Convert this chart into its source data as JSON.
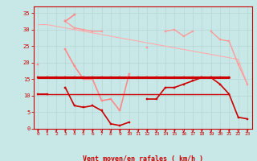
{
  "x": [
    0,
    1,
    2,
    3,
    4,
    5,
    6,
    7,
    8,
    9,
    10,
    11,
    12,
    13,
    14,
    15,
    16,
    17,
    18,
    19,
    20,
    21,
    22,
    23
  ],
  "series": [
    {
      "color": "#cc0000",
      "lw": 2.2,
      "marker": "s",
      "ms": 2.0,
      "zorder": 6,
      "y": [
        15.5,
        15.5,
        15.5,
        15.5,
        15.5,
        15.5,
        15.5,
        15.5,
        15.5,
        15.5,
        15.5,
        15.5,
        15.5,
        15.5,
        15.5,
        15.5,
        15.5,
        15.5,
        15.5,
        15.5,
        15.5,
        15.5,
        null,
        null
      ]
    },
    {
      "color": "#cc0000",
      "lw": 1.2,
      "marker": "s",
      "ms": 2.0,
      "zorder": 5,
      "y": [
        10.5,
        10.5,
        null,
        12.5,
        7.0,
        6.5,
        7.0,
        5.5,
        1.5,
        1.0,
        2.0,
        null,
        9.0,
        9.0,
        12.5,
        12.5,
        13.5,
        14.5,
        15.5,
        15.5,
        13.5,
        10.5,
        3.5,
        3.0
      ]
    },
    {
      "color": "#ff8888",
      "lw": 1.2,
      "marker": "s",
      "ms": 2.0,
      "zorder": 4,
      "y": [
        19.5,
        null,
        null,
        24.0,
        19.0,
        15.0,
        15.0,
        8.5,
        9.0,
        5.5,
        16.5,
        null,
        null,
        null,
        null,
        null,
        null,
        null,
        null,
        null,
        null,
        null,
        null,
        null
      ]
    },
    {
      "color": "#ff8888",
      "lw": 1.2,
      "marker": "s",
      "ms": 2.0,
      "zorder": 4,
      "y": [
        null,
        null,
        null,
        32.5,
        34.5,
        null,
        null,
        null,
        null,
        null,
        null,
        null,
        null,
        null,
        null,
        null,
        null,
        null,
        null,
        null,
        null,
        null,
        null,
        null
      ]
    },
    {
      "color": "#ff9999",
      "lw": 1.0,
      "marker": "s",
      "ms": 1.8,
      "zorder": 3,
      "y": [
        null,
        null,
        null,
        32.5,
        30.5,
        30.0,
        29.5,
        29.5,
        null,
        null,
        null,
        null,
        24.5,
        null,
        29.5,
        30.0,
        28.0,
        29.5,
        null,
        29.5,
        27.0,
        26.5,
        19.5,
        13.5
      ]
    },
    {
      "color": "#ffaaaa",
      "lw": 0.8,
      "marker": null,
      "ms": 0,
      "zorder": 2,
      "y": [
        31.5,
        31.5,
        31.0,
        30.5,
        30.0,
        29.5,
        29.0,
        28.5,
        28.0,
        27.5,
        27.0,
        26.5,
        26.0,
        25.5,
        25.0,
        24.5,
        24.0,
        23.5,
        23.0,
        22.5,
        22.0,
        21.5,
        21.0,
        13.5
      ]
    },
    {
      "color": "#cc0000",
      "lw": 1.0,
      "marker": null,
      "ms": 0,
      "zorder": 5,
      "y": [
        10.5,
        10.5,
        10.5,
        10.5,
        10.5,
        10.5,
        10.5,
        10.5,
        10.5,
        10.5,
        10.5,
        10.5,
        10.5,
        10.5,
        10.5,
        10.5,
        10.5,
        10.5,
        10.5,
        10.5,
        10.5,
        10.5,
        null,
        null
      ]
    }
  ],
  "ylim": [
    0,
    37
  ],
  "xlim": [
    -0.5,
    23.5
  ],
  "yticks": [
    0,
    5,
    10,
    15,
    20,
    25,
    30,
    35
  ],
  "xticks": [
    0,
    1,
    2,
    3,
    4,
    5,
    6,
    7,
    8,
    9,
    10,
    11,
    12,
    13,
    14,
    15,
    16,
    17,
    18,
    19,
    20,
    21,
    22,
    23
  ],
  "xlabel": "Vent moyen/en rafales ( km/h )",
  "bg_color": "#c8e8e8",
  "grid_color": "#b8d4d4",
  "axis_color": "#cc0000",
  "label_color": "#cc0000",
  "arrow_color": "#cc0000",
  "figsize": [
    3.2,
    2.0
  ],
  "dpi": 100
}
